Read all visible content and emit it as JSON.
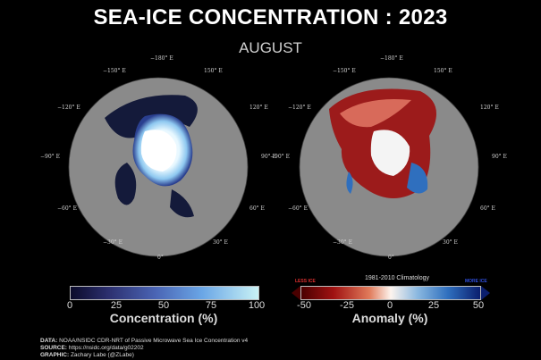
{
  "title": "SEA-ICE CONCENTRATION : 2023",
  "subtitle": "AUGUST",
  "longitude_labels": [
    "−180° E",
    "−150° E",
    "150° E",
    "−120° E",
    "120° E",
    "−90° E",
    "90° E",
    "−60° E",
    "60° E",
    "−30° E",
    "30° E",
    "0°"
  ],
  "left_colorbar": {
    "title": "Concentration (%)",
    "ticks": [
      "0",
      "25",
      "50",
      "75",
      "100"
    ]
  },
  "right_colorbar": {
    "title": "Anomaly (%)",
    "ticks": [
      "-50",
      "-25",
      "0",
      "25",
      "50"
    ],
    "climatology_label": "1981-2010 Climatology",
    "less_ice_label": "LESS ICE",
    "more_ice_label": "MORE ICE"
  },
  "credits": {
    "data_label": "DATA:",
    "data_text": "NOAA/NSIDC CDR-NRT of Passive Microwave Sea Ice Concentration v4",
    "source_label": "SOURCE:",
    "source_text": "https://nsidc.org/data/g02202",
    "graphic_label": "GRAPHIC:",
    "graphic_text": "Zachary Labe (@ZLabe)"
  },
  "colors": {
    "background": "#000000",
    "land": "#8a8a8a",
    "ice": "#f4fbff",
    "loss": "#a01212",
    "gain": "#2f6fbe"
  }
}
